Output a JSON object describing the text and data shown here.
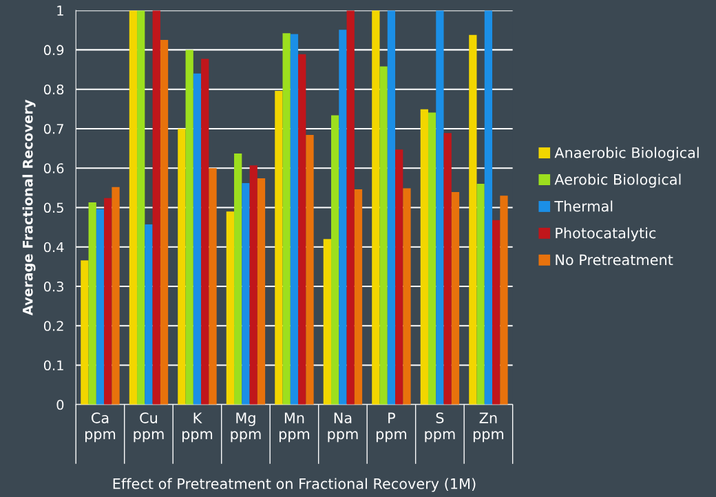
{
  "chart_data": {
    "type": "bar",
    "xlabel": "Effect of Pretreatment on Fractional Recovery (1M)",
    "ylabel": "Average Fractional Recovery",
    "categories": [
      "Ca\nppm",
      "Cu\nppm",
      "K\nppm",
      "Mg\nppm",
      "Mn\nppm",
      "Na\nppm",
      "P\nppm",
      "S\nppm",
      "Zn\nppm"
    ],
    "series": [
      {
        "name": "Anaerobic Biological",
        "color": "#f2d600",
        "values": [
          0.366,
          1,
          0.7,
          0.49,
          0.796,
          0.42,
          1,
          0.749,
          0.938
        ]
      },
      {
        "name": "Aerobic Biological",
        "color": "#9ddf1e",
        "values": [
          0.513,
          1,
          0.9,
          0.637,
          0.942,
          0.734,
          0.858,
          0.741,
          0.56
        ]
      },
      {
        "name": "Thermal",
        "color": "#1b8fe6",
        "values": [
          0.496,
          0.457,
          0.84,
          0.562,
          0.94,
          0.951,
          1,
          1,
          1
        ]
      },
      {
        "name": "Photocatalytic",
        "color": "#c0161b",
        "values": [
          0.524,
          1,
          0.877,
          0.607,
          0.889,
          1,
          0.647,
          0.689,
          0.468
        ]
      },
      {
        "name": "No Pretreatment",
        "color": "#e8720c",
        "values": [
          0.552,
          0.925,
          0.6,
          0.574,
          0.684,
          0.546,
          0.549,
          0.539,
          0.53
        ]
      }
    ],
    "ylim": [
      0,
      1
    ],
    "yticks": [
      0,
      0.1,
      0.2,
      0.3,
      0.4,
      0.5,
      0.6,
      0.7,
      0.8,
      0.9,
      1
    ],
    "grid": "y",
    "legend": "right"
  }
}
